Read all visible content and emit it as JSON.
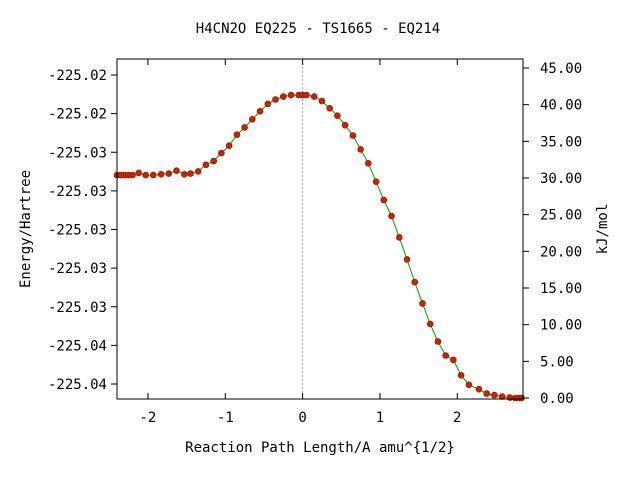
{
  "chart_data": {
    "type": "line",
    "title": "H4CN2O   EQ225 - TS1665 - EQ214",
    "xlabel": "Reaction Path Length/A amu^{1/2}",
    "ylabel_left": "Energy/Hartree",
    "ylabel_right": "kJ/mol",
    "xlim": [
      -2.4,
      2.85
    ],
    "ylim_kjmol": [
      0,
      45
    ],
    "x_ticks": [
      -2,
      -1,
      0,
      1,
      2
    ],
    "x_tick_labels": [
      "-2",
      "-1",
      "0",
      "1",
      "2"
    ],
    "left_tick_labels": [
      "-225.02",
      "-225.02",
      "-225.03",
      "-225.03",
      "-225.03",
      "-225.03",
      "-225.03",
      "-225.04",
      "-225.04"
    ],
    "right_ticks": [
      0,
      5,
      10,
      15,
      20,
      25,
      30,
      35,
      40,
      45
    ],
    "right_tick_labels": [
      "0.00",
      "5.00",
      "10.00",
      "15.00",
      "20.00",
      "25.00",
      "30.00",
      "35.00",
      "40.00",
      "45.00"
    ],
    "ts_x": 0,
    "series": [
      {
        "color": "#cc2200",
        "line_color": "#00a000",
        "x": [
          -2.4,
          -2.35,
          -2.3,
          -2.25,
          -2.2,
          -2.12,
          -2.03,
          -1.93,
          -1.83,
          -1.73,
          -1.63,
          -1.53,
          -1.45,
          -1.35,
          -1.25,
          -1.15,
          -1.05,
          -0.95,
          -0.85,
          -0.75,
          -0.65,
          -0.55,
          -0.45,
          -0.35,
          -0.25,
          -0.15,
          -0.05,
          0.0,
          0.05,
          0.15,
          0.25,
          0.35,
          0.45,
          0.55,
          0.65,
          0.75,
          0.85,
          0.95,
          1.05,
          1.15,
          1.25,
          1.35,
          1.45,
          1.55,
          1.65,
          1.75,
          1.85,
          1.95,
          2.05,
          2.15,
          2.28,
          2.38,
          2.48,
          2.58,
          2.68,
          2.75,
          2.8,
          2.83
        ],
        "y": [
          30.4,
          30.4,
          30.4,
          30.4,
          30.4,
          30.7,
          30.4,
          30.4,
          30.5,
          30.6,
          31.0,
          30.5,
          30.6,
          30.9,
          31.8,
          32.3,
          33.4,
          34.4,
          35.9,
          36.9,
          38.0,
          39.1,
          40.1,
          40.7,
          41.1,
          41.3,
          41.3,
          41.3,
          41.3,
          41.1,
          40.5,
          39.5,
          38.5,
          37.2,
          35.8,
          33.9,
          32.0,
          29.5,
          27.0,
          24.8,
          21.9,
          18.9,
          15.8,
          12.9,
          10.1,
          7.7,
          5.8,
          5.2,
          3.1,
          1.8,
          1.2,
          0.6,
          0.4,
          0.2,
          0.05,
          0.0,
          0.0,
          0.0
        ]
      }
    ]
  }
}
